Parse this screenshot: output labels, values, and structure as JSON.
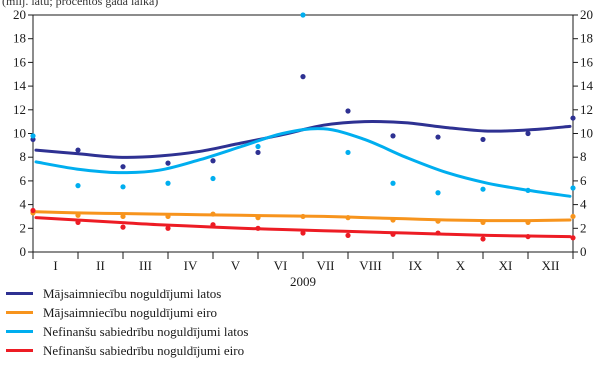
{
  "chart_data": {
    "type": "line",
    "top_note": "(milj. latu; procentos gada laikā)",
    "xlabel": "2009",
    "categories": [
      "I",
      "II",
      "III",
      "IV",
      "V",
      "VI",
      "VII",
      "VIII",
      "IX",
      "X",
      "XI",
      "XII"
    ],
    "ylim": [
      0,
      20
    ],
    "y_ticks": [
      0,
      2,
      4,
      6,
      8,
      10,
      12,
      14,
      16,
      18,
      20
    ],
    "grid": false,
    "series": [
      {
        "name": "Mājsaimniecību noguldījumi latos",
        "color": "#2e3192",
        "points": [
          9.5,
          8.6,
          7.2,
          7.5,
          7.7,
          8.4,
          14.8,
          11.9,
          9.8,
          9.7,
          9.5,
          10.0,
          11.3
        ],
        "trend": [
          8.6,
          8.3,
          8.0,
          8.1,
          8.5,
          9.2,
          9.9,
          10.7,
          11.0,
          10.9,
          10.5,
          10.2,
          10.3,
          10.6
        ]
      },
      {
        "name": "Mājsaimniecību noguldījumi eiro",
        "color": "#f7941d",
        "points": [
          3.3,
          3.1,
          3.0,
          3.0,
          3.2,
          2.9,
          3.0,
          2.9,
          2.7,
          2.6,
          2.5,
          2.5,
          3.0
        ],
        "trend": [
          3.4,
          3.3,
          3.25,
          3.2,
          3.15,
          3.1,
          3.05,
          3.0,
          2.9,
          2.8,
          2.7,
          2.65,
          2.65,
          2.7
        ]
      },
      {
        "name": "Nefinanšu sabiedrību noguldījumi latos",
        "color": "#00aeef",
        "points": [
          9.8,
          5.6,
          5.5,
          5.8,
          6.2,
          8.9,
          20.0,
          8.4,
          5.8,
          5.0,
          5.3,
          5.2,
          5.4
        ],
        "trend": [
          7.6,
          7.0,
          6.7,
          6.9,
          7.8,
          8.9,
          10.0,
          10.4,
          9.5,
          8.0,
          6.7,
          5.8,
          5.2,
          4.7
        ]
      },
      {
        "name": "Nefinanšu sabiedrību noguldījumi eiro",
        "color": "#ed1c24",
        "points": [
          3.5,
          2.5,
          2.1,
          2.0,
          2.3,
          2.0,
          1.6,
          1.4,
          1.5,
          1.6,
          1.1,
          1.3,
          1.2
        ],
        "trend": [
          2.9,
          2.7,
          2.5,
          2.3,
          2.15,
          2.0,
          1.9,
          1.8,
          1.7,
          1.6,
          1.5,
          1.4,
          1.35,
          1.3
        ]
      }
    ]
  }
}
